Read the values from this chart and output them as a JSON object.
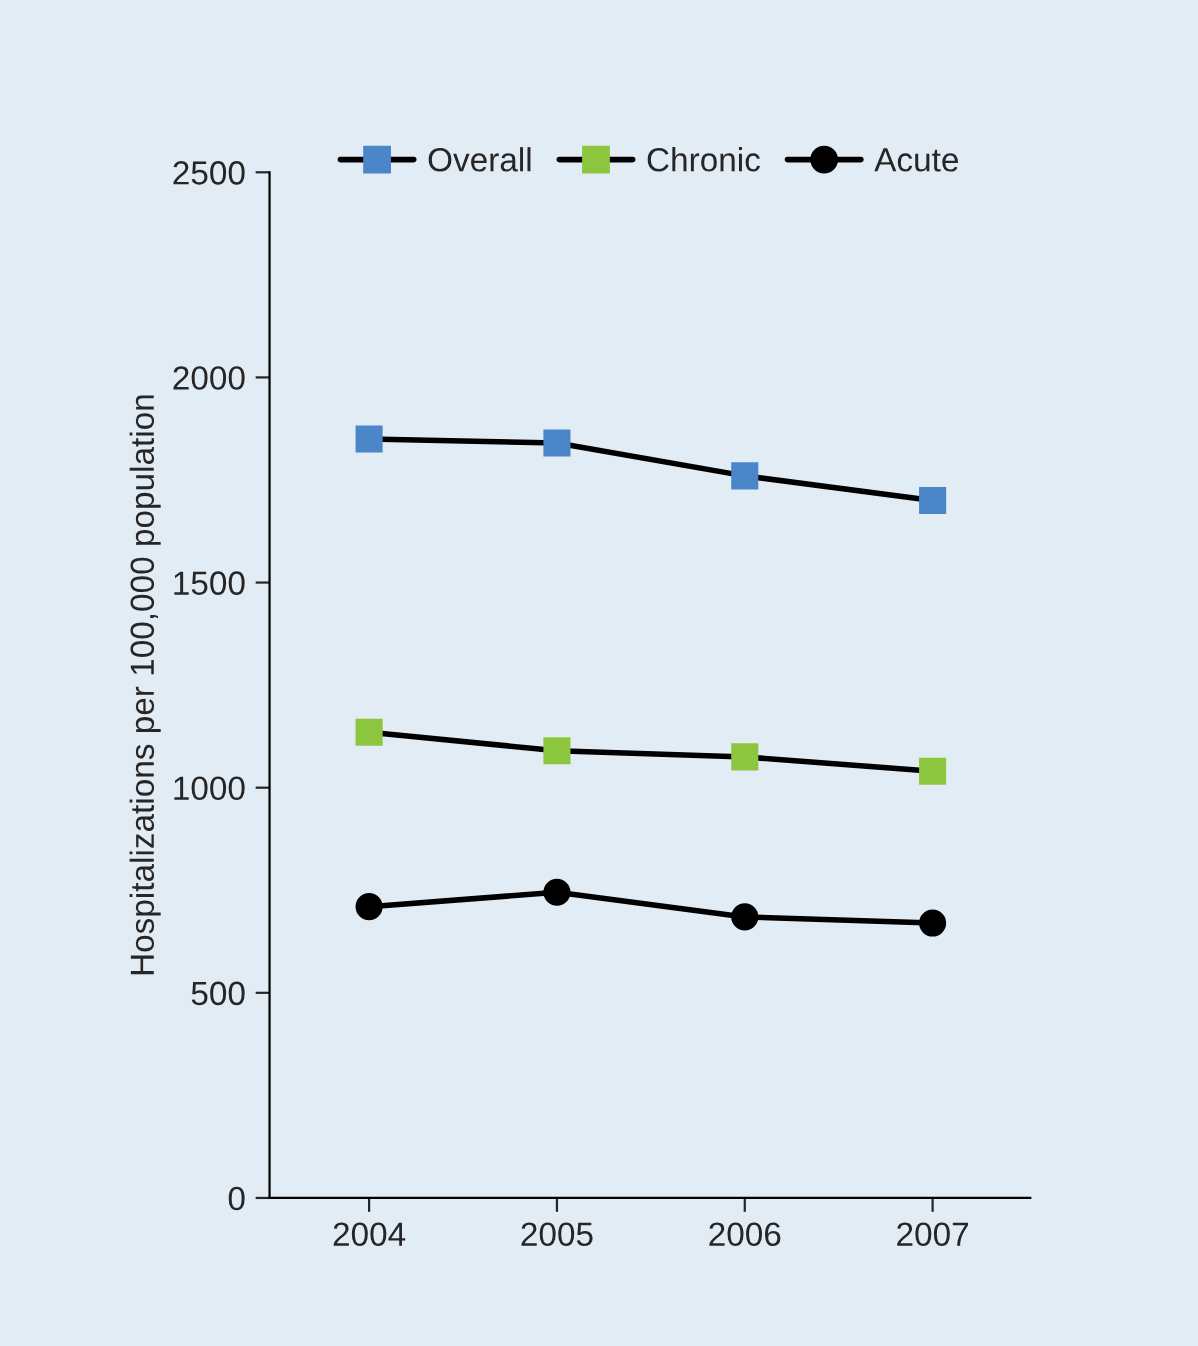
{
  "chart_data": {
    "type": "line",
    "ylabel": "Hospitalizations per 100,000 population",
    "categories": [
      "2004",
      "2005",
      "2006",
      "2007"
    ],
    "series": [
      {
        "name": "Overall",
        "color": "#4a86c8",
        "marker": "square",
        "values": [
          1850,
          1840,
          1760,
          1700
        ]
      },
      {
        "name": "Chronic",
        "color": "#8cc63f",
        "marker": "square",
        "values": [
          1135,
          1090,
          1075,
          1040
        ]
      },
      {
        "name": "Acute",
        "color": "#000000",
        "marker": "circle",
        "values": [
          710,
          745,
          685,
          670
        ]
      }
    ],
    "ylim": [
      0,
      2500
    ],
    "yticks": [
      0,
      500,
      1000,
      1500,
      2000,
      2500
    ],
    "grid": false,
    "legend": "top"
  }
}
